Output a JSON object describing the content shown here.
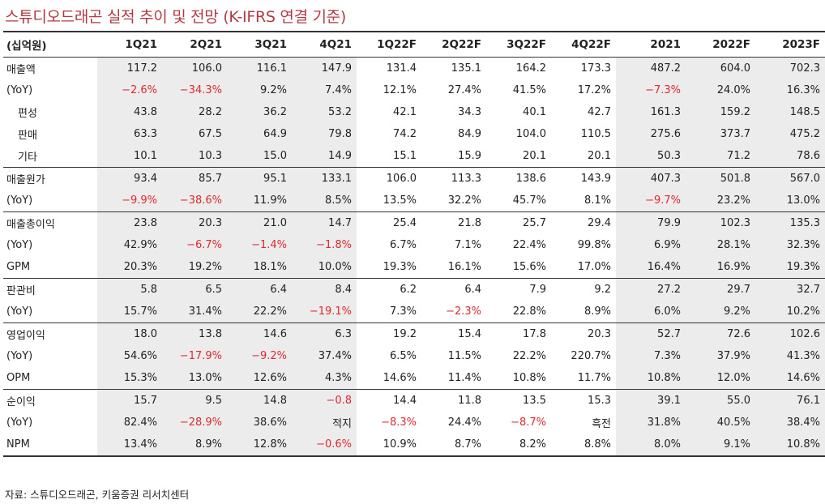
{
  "title": "스튜디오드래곤 실적 추이 및 전망 (K-IFRS 연결 기준)",
  "columns": [
    "(십억원)",
    "1Q21",
    "2Q21",
    "3Q21",
    "4Q21",
    "1Q22F",
    "2Q22F",
    "3Q22F",
    "4Q22F",
    "2021",
    "2022F",
    "2023F"
  ],
  "rows": [
    {
      "label": "매출액",
      "values": [
        "117.2",
        "106.0",
        "116.1",
        "147.9",
        "131.4",
        "135.1",
        "164.2",
        "173.3",
        "487.2",
        "604.0",
        "702.3"
      ]
    },
    {
      "label": "(YoY)",
      "values": [
        "-2.6%",
        "-34.3%",
        "9.2%",
        "7.4%",
        "12.1%",
        "27.4%",
        "41.5%",
        "17.2%",
        "-7.3%",
        "24.0%",
        "16.3%"
      ]
    },
    {
      "label": "편성",
      "values": [
        "43.8",
        "28.2",
        "36.2",
        "53.2",
        "42.1",
        "34.3",
        "40.1",
        "42.7",
        "161.3",
        "159.2",
        "148.5"
      ]
    },
    {
      "label": "판매",
      "values": [
        "63.3",
        "67.5",
        "64.9",
        "79.8",
        "74.2",
        "84.9",
        "104.0",
        "110.5",
        "275.6",
        "373.7",
        "475.2"
      ]
    },
    {
      "label": "기타",
      "values": [
        "10.1",
        "10.3",
        "15.0",
        "14.9",
        "15.1",
        "15.9",
        "20.1",
        "20.1",
        "50.3",
        "71.2",
        "78.6"
      ]
    },
    {
      "label": "매출원가",
      "values": [
        "93.4",
        "85.7",
        "95.1",
        "133.1",
        "106.0",
        "113.3",
        "138.6",
        "143.9",
        "407.3",
        "501.8",
        "567.0"
      ]
    },
    {
      "label": "(YoY)",
      "values": [
        "-9.9%",
        "-38.6%",
        "11.9%",
        "8.5%",
        "13.5%",
        "32.2%",
        "45.7%",
        "8.1%",
        "-9.7%",
        "23.2%",
        "13.0%"
      ]
    },
    {
      "label": "매출총이익",
      "values": [
        "23.8",
        "20.3",
        "21.0",
        "14.7",
        "25.4",
        "21.8",
        "25.7",
        "29.4",
        "79.9",
        "102.3",
        "135.3"
      ]
    },
    {
      "label": "(YoY)",
      "values": [
        "42.9%",
        "-6.7%",
        "-1.4%",
        "-1.8%",
        "6.7%",
        "7.1%",
        "22.4%",
        "99.8%",
        "6.9%",
        "28.1%",
        "32.3%"
      ]
    },
    {
      "label": "GPM",
      "values": [
        "20.3%",
        "19.2%",
        "18.1%",
        "10.0%",
        "19.3%",
        "16.1%",
        "15.6%",
        "17.0%",
        "16.4%",
        "16.9%",
        "19.3%"
      ]
    },
    {
      "label": "판관비",
      "values": [
        "5.8",
        "6.5",
        "6.4",
        "8.4",
        "6.2",
        "6.4",
        "7.9",
        "9.2",
        "27.2",
        "29.7",
        "32.7"
      ]
    },
    {
      "label": "(YoY)",
      "values": [
        "15.7%",
        "31.4%",
        "22.2%",
        "-19.1%",
        "7.3%",
        "-2.3%",
        "22.8%",
        "8.9%",
        "6.0%",
        "9.2%",
        "10.2%"
      ]
    },
    {
      "label": "영업이익",
      "values": [
        "18.0",
        "13.8",
        "14.6",
        "6.3",
        "19.2",
        "15.4",
        "17.8",
        "20.3",
        "52.7",
        "72.6",
        "102.6"
      ]
    },
    {
      "label": "(YoY)",
      "values": [
        "54.6%",
        "-17.9%",
        "-9.2%",
        "37.4%",
        "6.5%",
        "11.5%",
        "22.2%",
        "220.7%",
        "7.3%",
        "37.9%",
        "41.3%"
      ]
    },
    {
      "label": "OPM",
      "values": [
        "15.3%",
        "13.0%",
        "12.6%",
        "4.3%",
        "14.6%",
        "11.4%",
        "10.8%",
        "11.7%",
        "10.8%",
        "12.0%",
        "14.6%"
      ]
    },
    {
      "label": "순이익",
      "values": [
        "15.7",
        "9.5",
        "14.8",
        "-0.8",
        "14.4",
        "11.8",
        "13.5",
        "15.3",
        "39.1",
        "55.0",
        "76.1"
      ]
    },
    {
      "label": "(YoY)",
      "values": [
        "82.4%",
        "-28.9%",
        "38.6%",
        "적지",
        "-8.3%",
        "24.4%",
        "-8.7%",
        "흑전",
        "31.8%",
        "40.5%",
        "38.4%"
      ]
    },
    {
      "label": "NPM",
      "values": [
        "13.4%",
        "8.9%",
        "12.8%",
        "-0.6%",
        "10.9%",
        "8.7%",
        "8.2%",
        "8.8%",
        "8.0%",
        "9.1%",
        "10.8%"
      ]
    }
  ],
  "source": "자료: 스튜디오드래곤, 키움증권 리서치센터",
  "colors": {
    "title": "#b03a44",
    "negative": "#e0282e",
    "shade": "#ececec"
  }
}
